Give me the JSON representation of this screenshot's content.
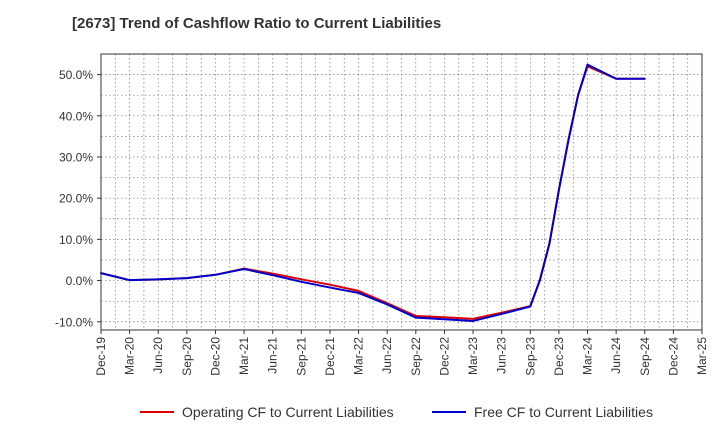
{
  "chart_data": {
    "type": "line",
    "title": "[2673]  Trend of Cashflow Ratio to Current Liabilities",
    "xlabel": "",
    "ylabel": "",
    "categories": [
      "Dec-19",
      "Mar-20",
      "Jun-20",
      "Sep-20",
      "Dec-20",
      "Mar-21",
      "Jun-21",
      "Sep-21",
      "Dec-21",
      "Mar-22",
      "Jun-22",
      "Sep-22",
      "Dec-22",
      "Mar-23",
      "Jun-23",
      "Sep-23",
      "Dec-23",
      "Mar-24",
      "Jun-24",
      "Sep-24",
      "Dec-24",
      "Mar-25"
    ],
    "x_tick_labels": [
      "Dec-19",
      "Mar-20",
      "Jun-20",
      "Sep-20",
      "Dec-20",
      "Mar-21",
      "Jun-21",
      "Sep-21",
      "Dec-21",
      "Mar-22",
      "Jun-22",
      "Sep-22",
      "Dec-22",
      "Mar-23",
      "Jun-23",
      "Sep-23",
      "Dec-23",
      "Mar-24",
      "Jun-24",
      "Sep-24",
      "Dec-24",
      "Mar-25"
    ],
    "y_ticks": [
      -10,
      0,
      10,
      20,
      30,
      40,
      50
    ],
    "y_tick_labels": [
      "-10.0%",
      "0.0%",
      "10.0%",
      "20.0%",
      "30.0%",
      "40.0%",
      "50.0%"
    ],
    "ylim": [
      -12,
      55
    ],
    "grid": true,
    "legend_position": "bottom",
    "series": [
      {
        "name": "Operating CF to Current Liabilities",
        "color": "#dd0000",
        "x": [
          0,
          1,
          2,
          3,
          4,
          5,
          6,
          7,
          8,
          9,
          10,
          11,
          12,
          13,
          14,
          15,
          15.33,
          15.67,
          16,
          16.33,
          16.67,
          17,
          18,
          19
        ],
        "values": [
          1.8,
          0.1,
          0.3,
          0.6,
          1.4,
          2.9,
          1.7,
          0.3,
          -1.0,
          -2.5,
          -5.5,
          -8.6,
          -8.9,
          -9.3,
          -7.8,
          -6.2,
          0.0,
          9.0,
          22.0,
          34.0,
          45.0,
          52.0,
          49.0,
          49.0
        ]
      },
      {
        "name": "Free CF to Current Liabilities",
        "color": "#0000cc",
        "x": [
          0,
          1,
          2,
          3,
          4,
          5,
          6,
          7,
          8,
          9,
          10,
          11,
          12,
          13,
          14,
          15,
          15.33,
          15.67,
          16,
          16.33,
          16.67,
          17,
          18,
          19
        ],
        "values": [
          1.8,
          0.1,
          0.3,
          0.6,
          1.4,
          2.8,
          1.3,
          -0.3,
          -1.7,
          -3.0,
          -5.8,
          -9.0,
          -9.4,
          -9.8,
          -8.1,
          -6.3,
          0.0,
          9.0,
          22.0,
          34.0,
          45.0,
          52.4,
          49.0,
          49.0
        ]
      }
    ]
  }
}
